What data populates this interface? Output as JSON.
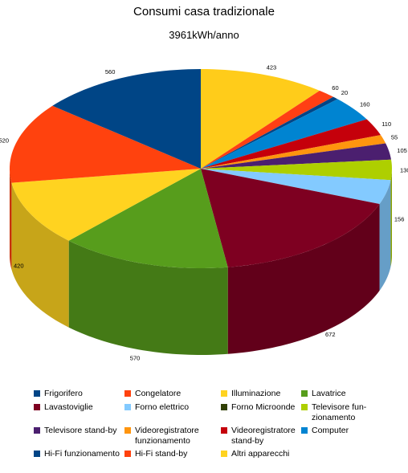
{
  "chart_data": {
    "type": "pie",
    "title": "Consumi casa tradizionale",
    "subtitle": "3961kWh/anno",
    "three_d": true,
    "legend_position": "bottom",
    "slices": [
      {
        "value": 423,
        "label": "423",
        "color": "#ffcc1a"
      },
      {
        "value": 60,
        "label": "60",
        "color": "#ff3f14"
      },
      {
        "value": 20,
        "label": "20",
        "color": "#004586"
      },
      {
        "value": 160,
        "label": "160",
        "color": "#0084d1"
      },
      {
        "value": 110,
        "label": "110",
        "color": "#c5000b"
      },
      {
        "value": 55,
        "label": "55",
        "color": "#ff950e"
      },
      {
        "value": 105,
        "label": "105",
        "color": "#4b1f6f"
      },
      {
        "value": 130,
        "label": "130",
        "color": "#aecf00"
      },
      {
        "value": 156,
        "label": "156",
        "color": "#83caff"
      },
      {
        "value": 672,
        "label": "672",
        "color": "#7e0021"
      },
      {
        "value": 570,
        "label": "570",
        "color": "#579d1c"
      },
      {
        "value": 420,
        "label": "420",
        "color": "#ffd320"
      },
      {
        "value": 520,
        "label": "520",
        "color": "#ff420e"
      },
      {
        "value": 560,
        "label": "560",
        "color": "#004586"
      }
    ],
    "legend": [
      {
        "label": "Frigorifero",
        "color": "#004586"
      },
      {
        "label": "Congelatore",
        "color": "#ff420e"
      },
      {
        "label": "Illuminazione",
        "color": "#ffd320"
      },
      {
        "label": "Lavatrice",
        "color": "#579d1c"
      },
      {
        "label": "Lavastoviglie",
        "color": "#7e0021"
      },
      {
        "label": "Forno elettrico",
        "color": "#83caff"
      },
      {
        "label": "Forno Microonde",
        "color": "#314004"
      },
      {
        "label": "Televisore fun-zionamento",
        "color": "#aecf00"
      },
      {
        "label": "Televisore stand-by",
        "color": "#4b1f6f"
      },
      {
        "label": "Videoregistratore funzionamento",
        "color": "#ff950e"
      },
      {
        "label": "Videoregistratore stand-by",
        "color": "#c5000b"
      },
      {
        "label": "Computer",
        "color": "#0084d1"
      },
      {
        "label": "Hi-Fi funzionamento",
        "color": "#004586"
      },
      {
        "label": "Hi-Fi stand-by",
        "color": "#ff420e"
      },
      {
        "label": "Altri apparecchi",
        "color": "#ffd320"
      }
    ]
  }
}
